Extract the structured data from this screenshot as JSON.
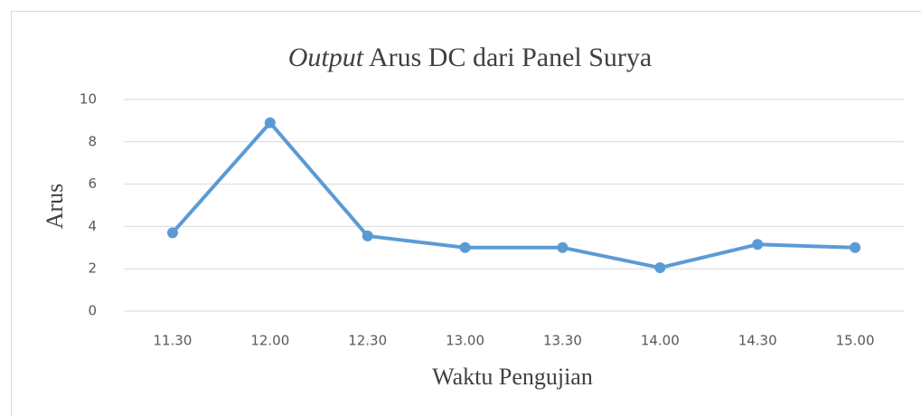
{
  "chart_data": {
    "type": "line",
    "title": {
      "emphasis": "Output",
      "text": "Arus DC dari Panel Surya"
    },
    "x_label": "Waktu Pengujian",
    "y_label": "Arus",
    "categories": [
      "11.30",
      "12.00",
      "12.30",
      "13.00",
      "13.30",
      "14.00",
      "14.30",
      "15.00"
    ],
    "values": [
      3.7,
      8.9,
      3.55,
      3.0,
      3.0,
      2.05,
      3.15,
      3.0
    ],
    "color": "#5b9bd5",
    "ylim": [
      0,
      10
    ],
    "yticks": [
      0,
      2,
      4,
      6,
      8,
      10
    ],
    "grid": true
  }
}
